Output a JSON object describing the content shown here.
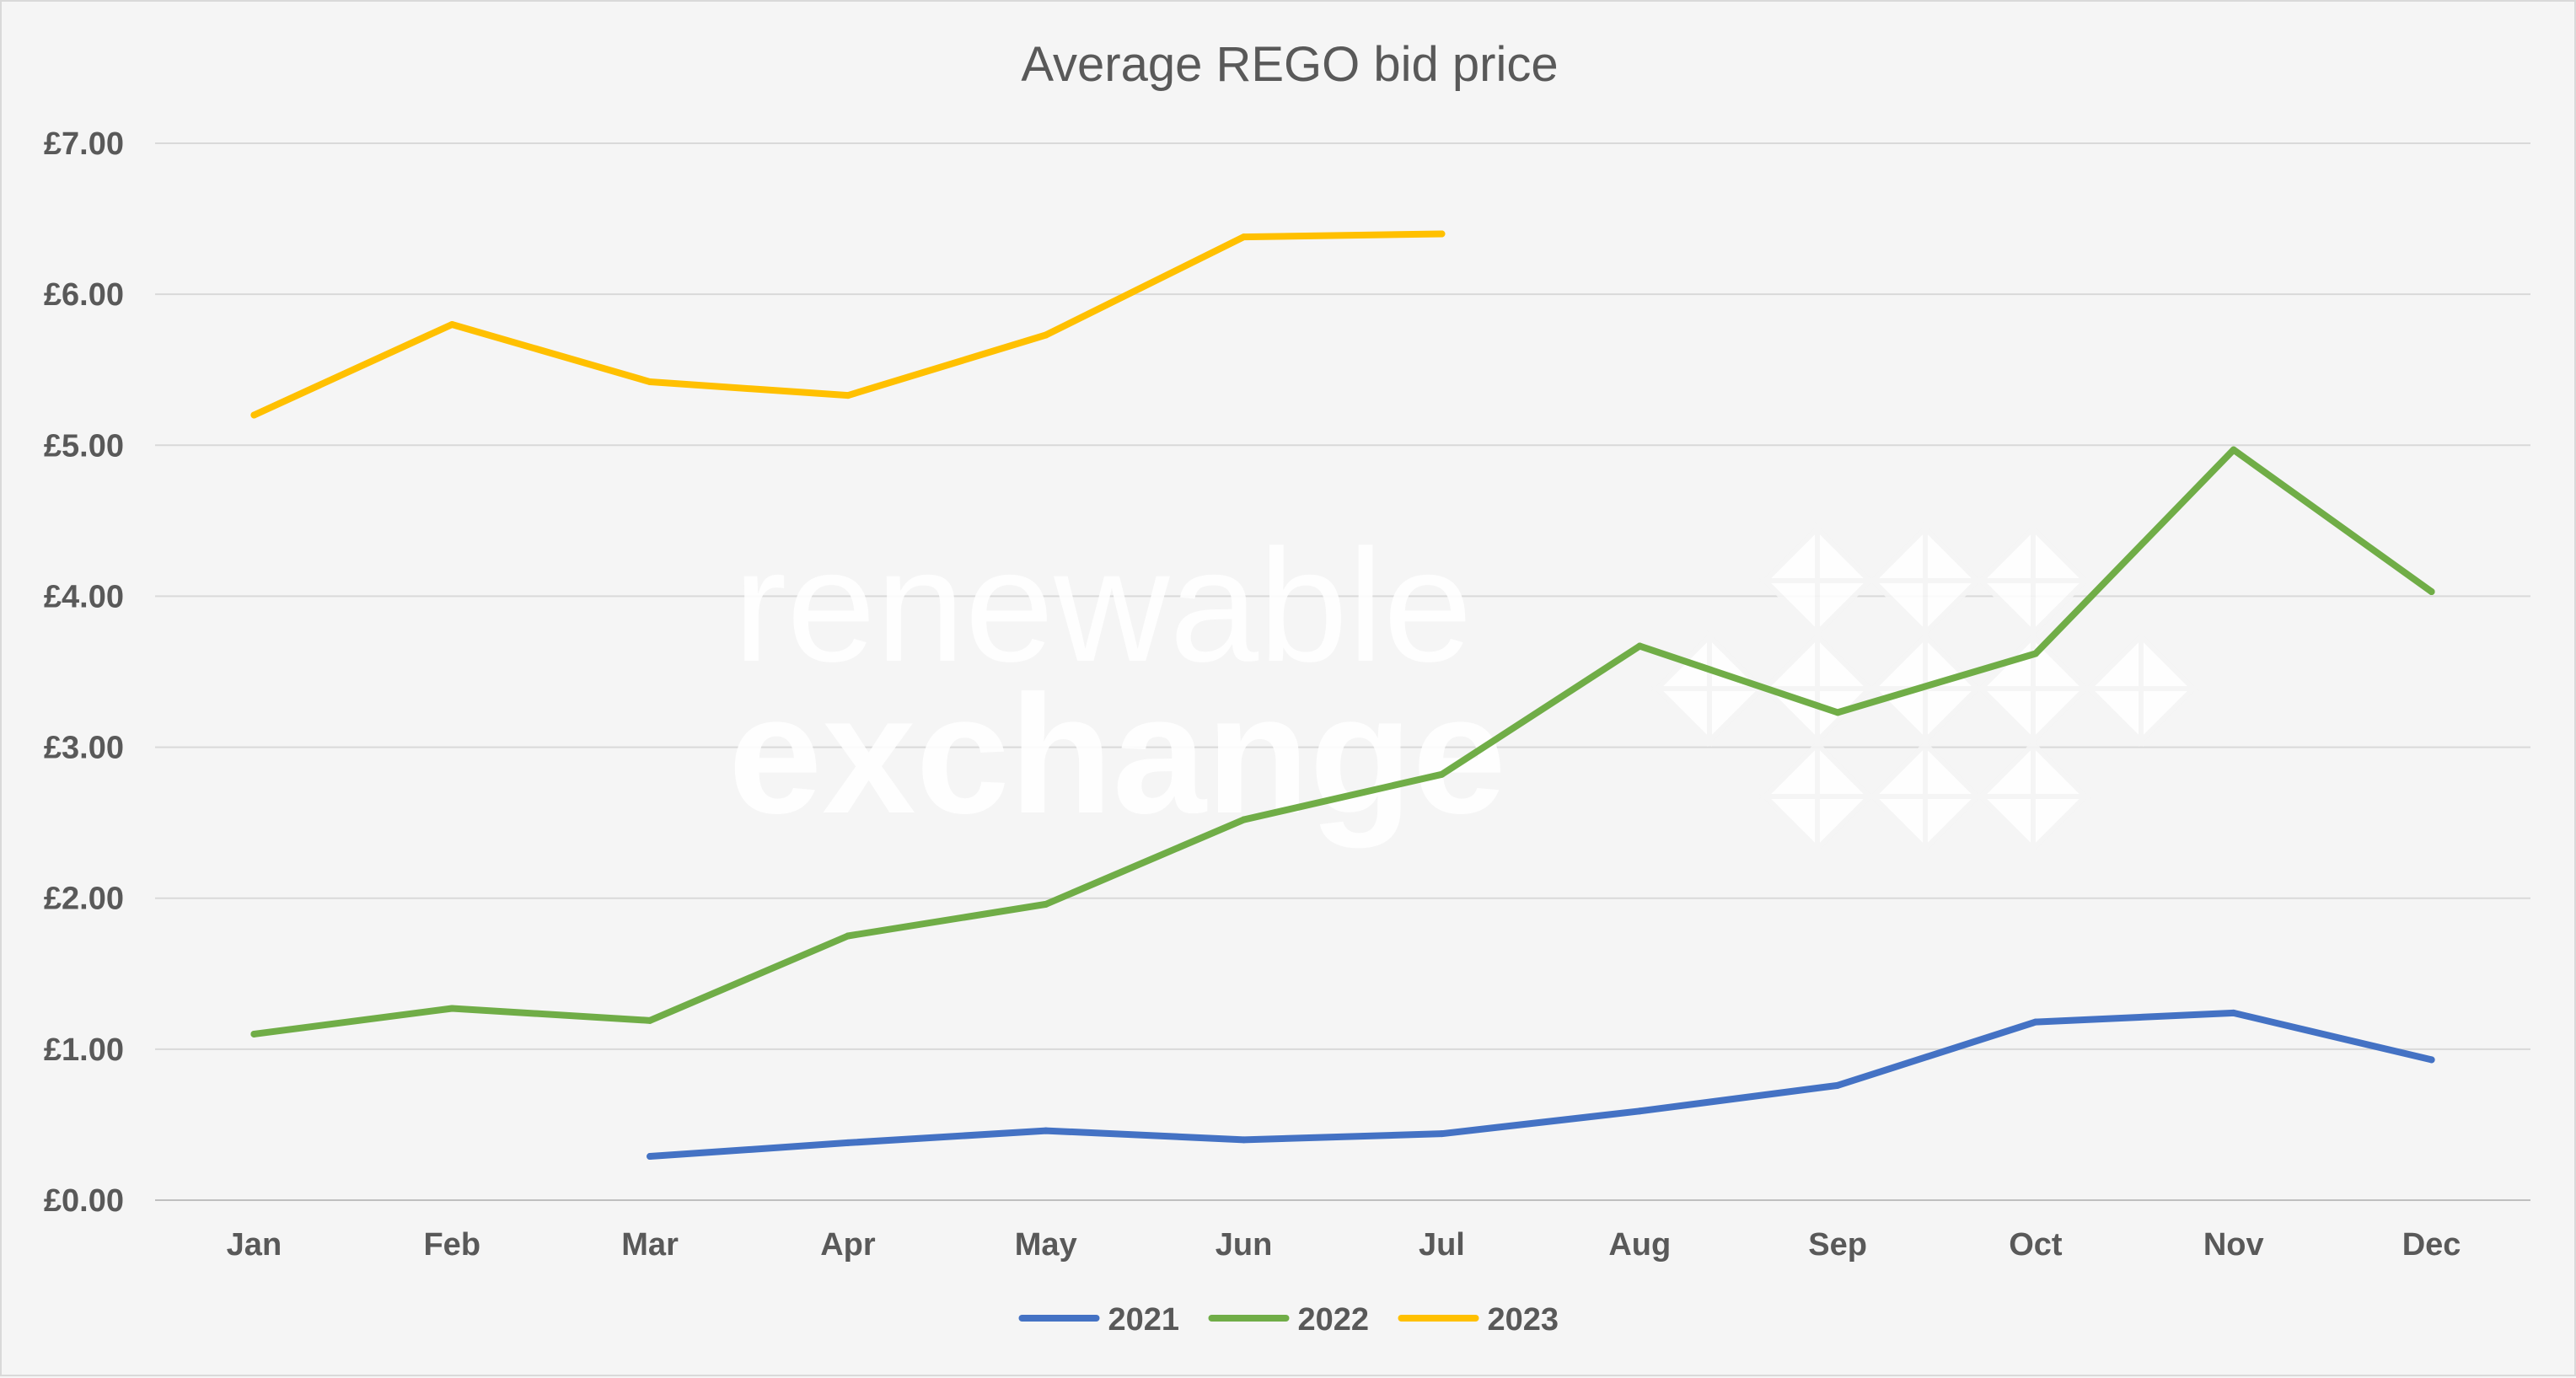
{
  "chart_data": {
    "type": "line",
    "title": "Average REGO bid price",
    "xlabel": "",
    "ylabel": "",
    "categories": [
      "Jan",
      "Feb",
      "Mar",
      "Apr",
      "May",
      "Jun",
      "Jul",
      "Aug",
      "Sep",
      "Oct",
      "Nov",
      "Dec"
    ],
    "y_ticks": [
      "£0.00",
      "£1.00",
      "£2.00",
      "£3.00",
      "£4.00",
      "£5.00",
      "£6.00",
      "£7.00"
    ],
    "ylim": [
      0,
      7
    ],
    "grid": true,
    "legend_position": "bottom",
    "series": [
      {
        "name": "2021",
        "color": "#4472c4",
        "values": [
          null,
          null,
          0.29,
          0.38,
          0.46,
          0.4,
          0.44,
          0.59,
          0.76,
          1.18,
          1.24,
          0.93
        ]
      },
      {
        "name": "2022",
        "color": "#70ad47",
        "values": [
          1.1,
          1.27,
          1.19,
          1.75,
          1.96,
          2.52,
          2.82,
          3.67,
          3.23,
          3.62,
          4.97,
          4.03
        ]
      },
      {
        "name": "2023",
        "color": "#ffc000",
        "values": [
          5.2,
          5.8,
          5.42,
          5.33,
          5.73,
          6.38,
          6.4,
          null,
          null,
          null,
          null,
          null
        ]
      }
    ]
  },
  "watermark": {
    "line1": "renewable",
    "line2": "exchange",
    "icon": "diamond-triangles-logo-icon"
  }
}
